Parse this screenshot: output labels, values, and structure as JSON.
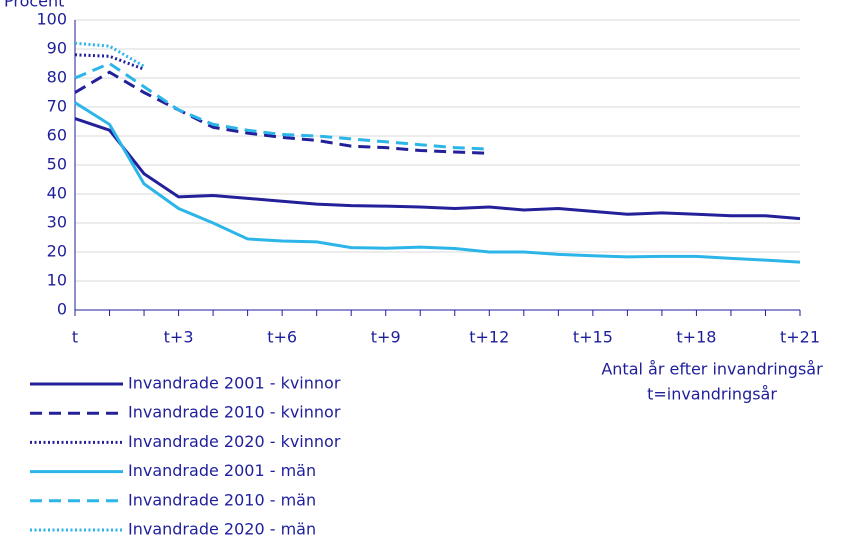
{
  "chart_data": {
    "type": "line",
    "y_label": "Procent",
    "x_label": "Antal år efter invandringsår",
    "x_note": "t=invandringsår",
    "categories": [
      "t",
      null,
      null,
      "t+3",
      null,
      null,
      "t+6",
      null,
      null,
      "t+9",
      null,
      null,
      "t+12",
      null,
      null,
      "t+15",
      null,
      null,
      "t+18",
      null,
      null,
      "t+21"
    ],
    "ylim": [
      0,
      100
    ],
    "yticks": [
      0,
      10,
      20,
      30,
      40,
      50,
      60,
      70,
      80,
      90,
      100
    ],
    "grid": true,
    "series": [
      {
        "name": "Invandrade 2001 - kvinnor",
        "color": "#24209a",
        "style": "solid",
        "values": [
          66,
          62,
          47,
          39,
          39.5,
          38.5,
          37.5,
          36.5,
          36,
          35.8,
          35.5,
          35,
          35.5,
          34.5,
          35,
          34,
          33,
          33.5,
          33,
          32.5,
          32.5,
          31.5
        ]
      },
      {
        "name": "Invandrade 2010 - kvinnor",
        "color": "#24209a",
        "style": "dashed",
        "values": [
          75,
          82,
          75,
          69,
          63,
          61,
          59.5,
          58.5,
          56.5,
          56,
          55,
          54.5,
          54,
          null,
          null,
          null,
          null,
          null,
          null,
          null,
          null,
          null
        ]
      },
      {
        "name": "Invandrade 2020 - kvinnor",
        "color": "#24209a",
        "style": "dotted",
        "values": [
          88,
          87.5,
          83,
          null,
          null,
          null,
          null,
          null,
          null,
          null,
          null,
          null,
          null,
          null,
          null,
          null,
          null,
          null,
          null,
          null,
          null,
          null
        ]
      },
      {
        "name": "Invandrade 2001 - män",
        "color": "#2bb5e8",
        "style": "solid",
        "values": [
          71.5,
          64,
          43.5,
          35,
          30,
          24.5,
          23.8,
          23.5,
          21.5,
          21.3,
          21.7,
          21.2,
          20,
          20,
          19.2,
          18.7,
          18.3,
          18.5,
          18.5,
          17.8,
          17.2,
          16.5
        ]
      },
      {
        "name": "Invandrade 2010 - män",
        "color": "#2bb5e8",
        "style": "dashed",
        "values": [
          80,
          85,
          77,
          69,
          64,
          62,
          60.5,
          60,
          59,
          58,
          57,
          56,
          55.5,
          null,
          null,
          null,
          null,
          null,
          null,
          null,
          null,
          null
        ]
      },
      {
        "name": "Invandrade 2020 - män",
        "color": "#2bb5e8",
        "style": "dotted",
        "values": [
          92,
          91,
          84,
          null,
          null,
          null,
          null,
          null,
          null,
          null,
          null,
          null,
          null,
          null,
          null,
          null,
          null,
          null,
          null,
          null,
          null,
          null
        ]
      }
    ]
  }
}
